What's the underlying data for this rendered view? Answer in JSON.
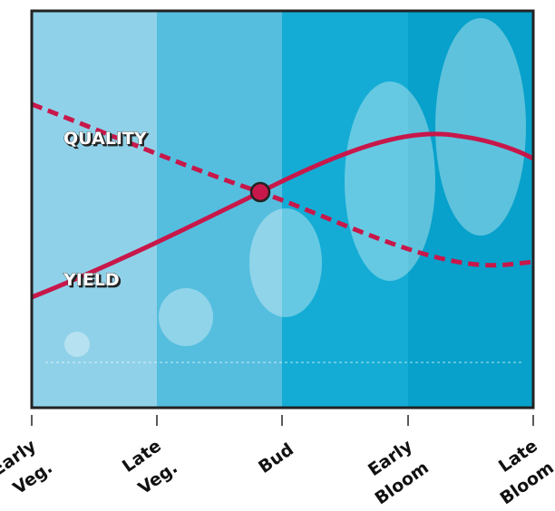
{
  "curve_labels": {
    "quality": "QUALITY",
    "yield": "YIELD"
  },
  "stages": [
    [
      "Early",
      "Veg."
    ],
    [
      "Late",
      "Veg."
    ],
    [
      "Bud"
    ],
    [
      "Early",
      "Bloom"
    ],
    [
      "Late",
      "Bloom"
    ]
  ]
}
